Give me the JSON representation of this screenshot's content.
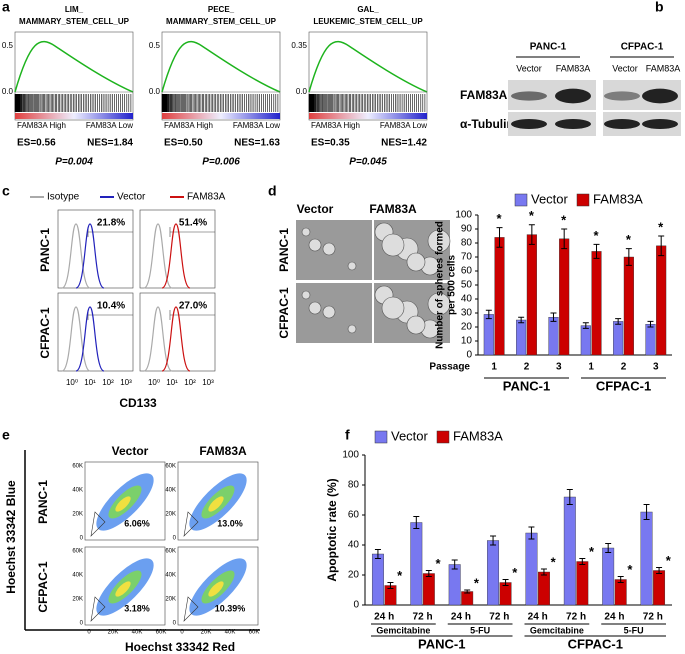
{
  "panel_labels": [
    "a",
    "b",
    "c",
    "d",
    "e",
    "f"
  ],
  "gsea": [
    {
      "title": [
        "LIM_",
        "MAMMARY_STEM_CELL_UP"
      ],
      "y_top": "0.5",
      "y_zero": "0.0",
      "high": "FAM83A High",
      "low": "FAM83A  Low",
      "es": "ES=0.56",
      "nes": "NES=1.84",
      "p": "P=0.004"
    },
    {
      "title": [
        "PECE_",
        "MAMMARY_STEM_CELL_UP"
      ],
      "y_top": "0.5",
      "y_zero": "0.0",
      "high": "FAM83A High",
      "low": "FAM83A  Low",
      "es": "ES=0.50",
      "nes": "NES=1.63",
      "p": "P=0.006"
    },
    {
      "title": [
        "GAL_",
        "LEUKEMIC_STEM_CELL_UP"
      ],
      "y_top": "0.35",
      "y_zero": "0.0",
      "high": "FAM83A High",
      "low": "FAM83A  Low",
      "es": "ES=0.35",
      "nes": "NES=1.42",
      "p": "P=0.045"
    }
  ],
  "western": {
    "cell_lines": [
      "PANC-1",
      "CFPAC-1"
    ],
    "lanes": [
      "Vector",
      "FAM83A",
      "Vector",
      "FAM83A"
    ],
    "proteins": [
      "FAM83A",
      "α-Tubulin"
    ]
  },
  "flow_cd133": {
    "legend": [
      {
        "name": "Isotype",
        "color": "#aaaaaa"
      },
      {
        "name": "Vector",
        "color": "#2222bb"
      },
      {
        "name": "FAM83A",
        "color": "#cc1111"
      }
    ],
    "rows": [
      "PANC-1",
      "CFPAC-1"
    ],
    "percents": [
      [
        "21.8%",
        "51.4%"
      ],
      [
        "10.4%",
        "27.0%"
      ]
    ],
    "x_ticks": [
      "10⁰",
      "10¹",
      "10²",
      "10³"
    ],
    "x_label": "CD133"
  },
  "sphere_images": {
    "columns": [
      "Vector",
      "FAM83A"
    ],
    "rows": [
      "PANC-1",
      "CFPAC-1"
    ]
  },
  "side_population": {
    "columns": [
      "Vector",
      "FAM83A"
    ],
    "rows": [
      "PANC-1",
      "CFPAC-1"
    ],
    "percents": [
      [
        "6.06%",
        "13.0%"
      ],
      [
        "3.18%",
        "10.39%"
      ]
    ],
    "y_label": "Hoechst 33342 Blue",
    "x_label": "Hoechst 33342 Red",
    "y_ticks": [
      "60K",
      "40K",
      "20K",
      "0"
    ],
    "x_ticks": [
      "0",
      "20K",
      "40K",
      "60K"
    ]
  },
  "chart_data": [
    {
      "type": "bar",
      "y_label": [
        "Number of spheres formed",
        "per 500 cells"
      ],
      "x_label": "Passage",
      "categories": [
        "1",
        "2",
        "3",
        "1",
        "2",
        "3"
      ],
      "groups": [
        "PANC-1",
        "CFPAC-1"
      ],
      "series": [
        {
          "name": "Vector",
          "color": "#7878f0",
          "values": [
            29,
            25,
            27,
            21,
            24,
            22
          ],
          "errors": [
            3,
            2,
            3,
            2,
            2,
            2
          ]
        },
        {
          "name": "FAM83A",
          "color": "#cc0000",
          "values": [
            84,
            86,
            83,
            74,
            70,
            78
          ],
          "errors": [
            7,
            7,
            7,
            5,
            6,
            7
          ]
        }
      ],
      "annotations": [
        "*",
        "*",
        "*",
        "*",
        "*",
        "*"
      ],
      "ylim": [
        0,
        100
      ],
      "yticks": [
        0,
        10,
        20,
        30,
        40,
        50,
        60,
        70,
        80,
        90,
        100
      ],
      "legend": "top"
    },
    {
      "type": "bar",
      "y_label": [
        "Apoptotic rate (%)"
      ],
      "categories": [
        "24 h",
        "72 h",
        "24 h",
        "72 h",
        "24 h",
        "72 h",
        "24 h",
        "72 h"
      ],
      "treatments": [
        "Gemcitabine",
        "5-FU",
        "Gemcitabine",
        "5-FU"
      ],
      "groups": [
        "PANC-1",
        "CFPAC-1"
      ],
      "series": [
        {
          "name": "Vector",
          "color": "#7878f0",
          "values": [
            34,
            55,
            27,
            43,
            48,
            72,
            38,
            62
          ],
          "errors": [
            3,
            4,
            3,
            3,
            4,
            5,
            3,
            5
          ]
        },
        {
          "name": "FAM83A",
          "color": "#cc0000",
          "values": [
            13,
            21,
            9,
            15,
            22,
            29,
            17,
            23
          ],
          "errors": [
            2,
            2,
            1,
            2,
            2,
            2,
            2,
            2
          ]
        }
      ],
      "annotations": [
        "*",
        "*",
        "*",
        "*",
        "*",
        "*",
        "*",
        "*"
      ],
      "ylim": [
        0,
        100
      ],
      "yticks": [
        0,
        20,
        40,
        60,
        80,
        100
      ],
      "legend": "top"
    }
  ]
}
